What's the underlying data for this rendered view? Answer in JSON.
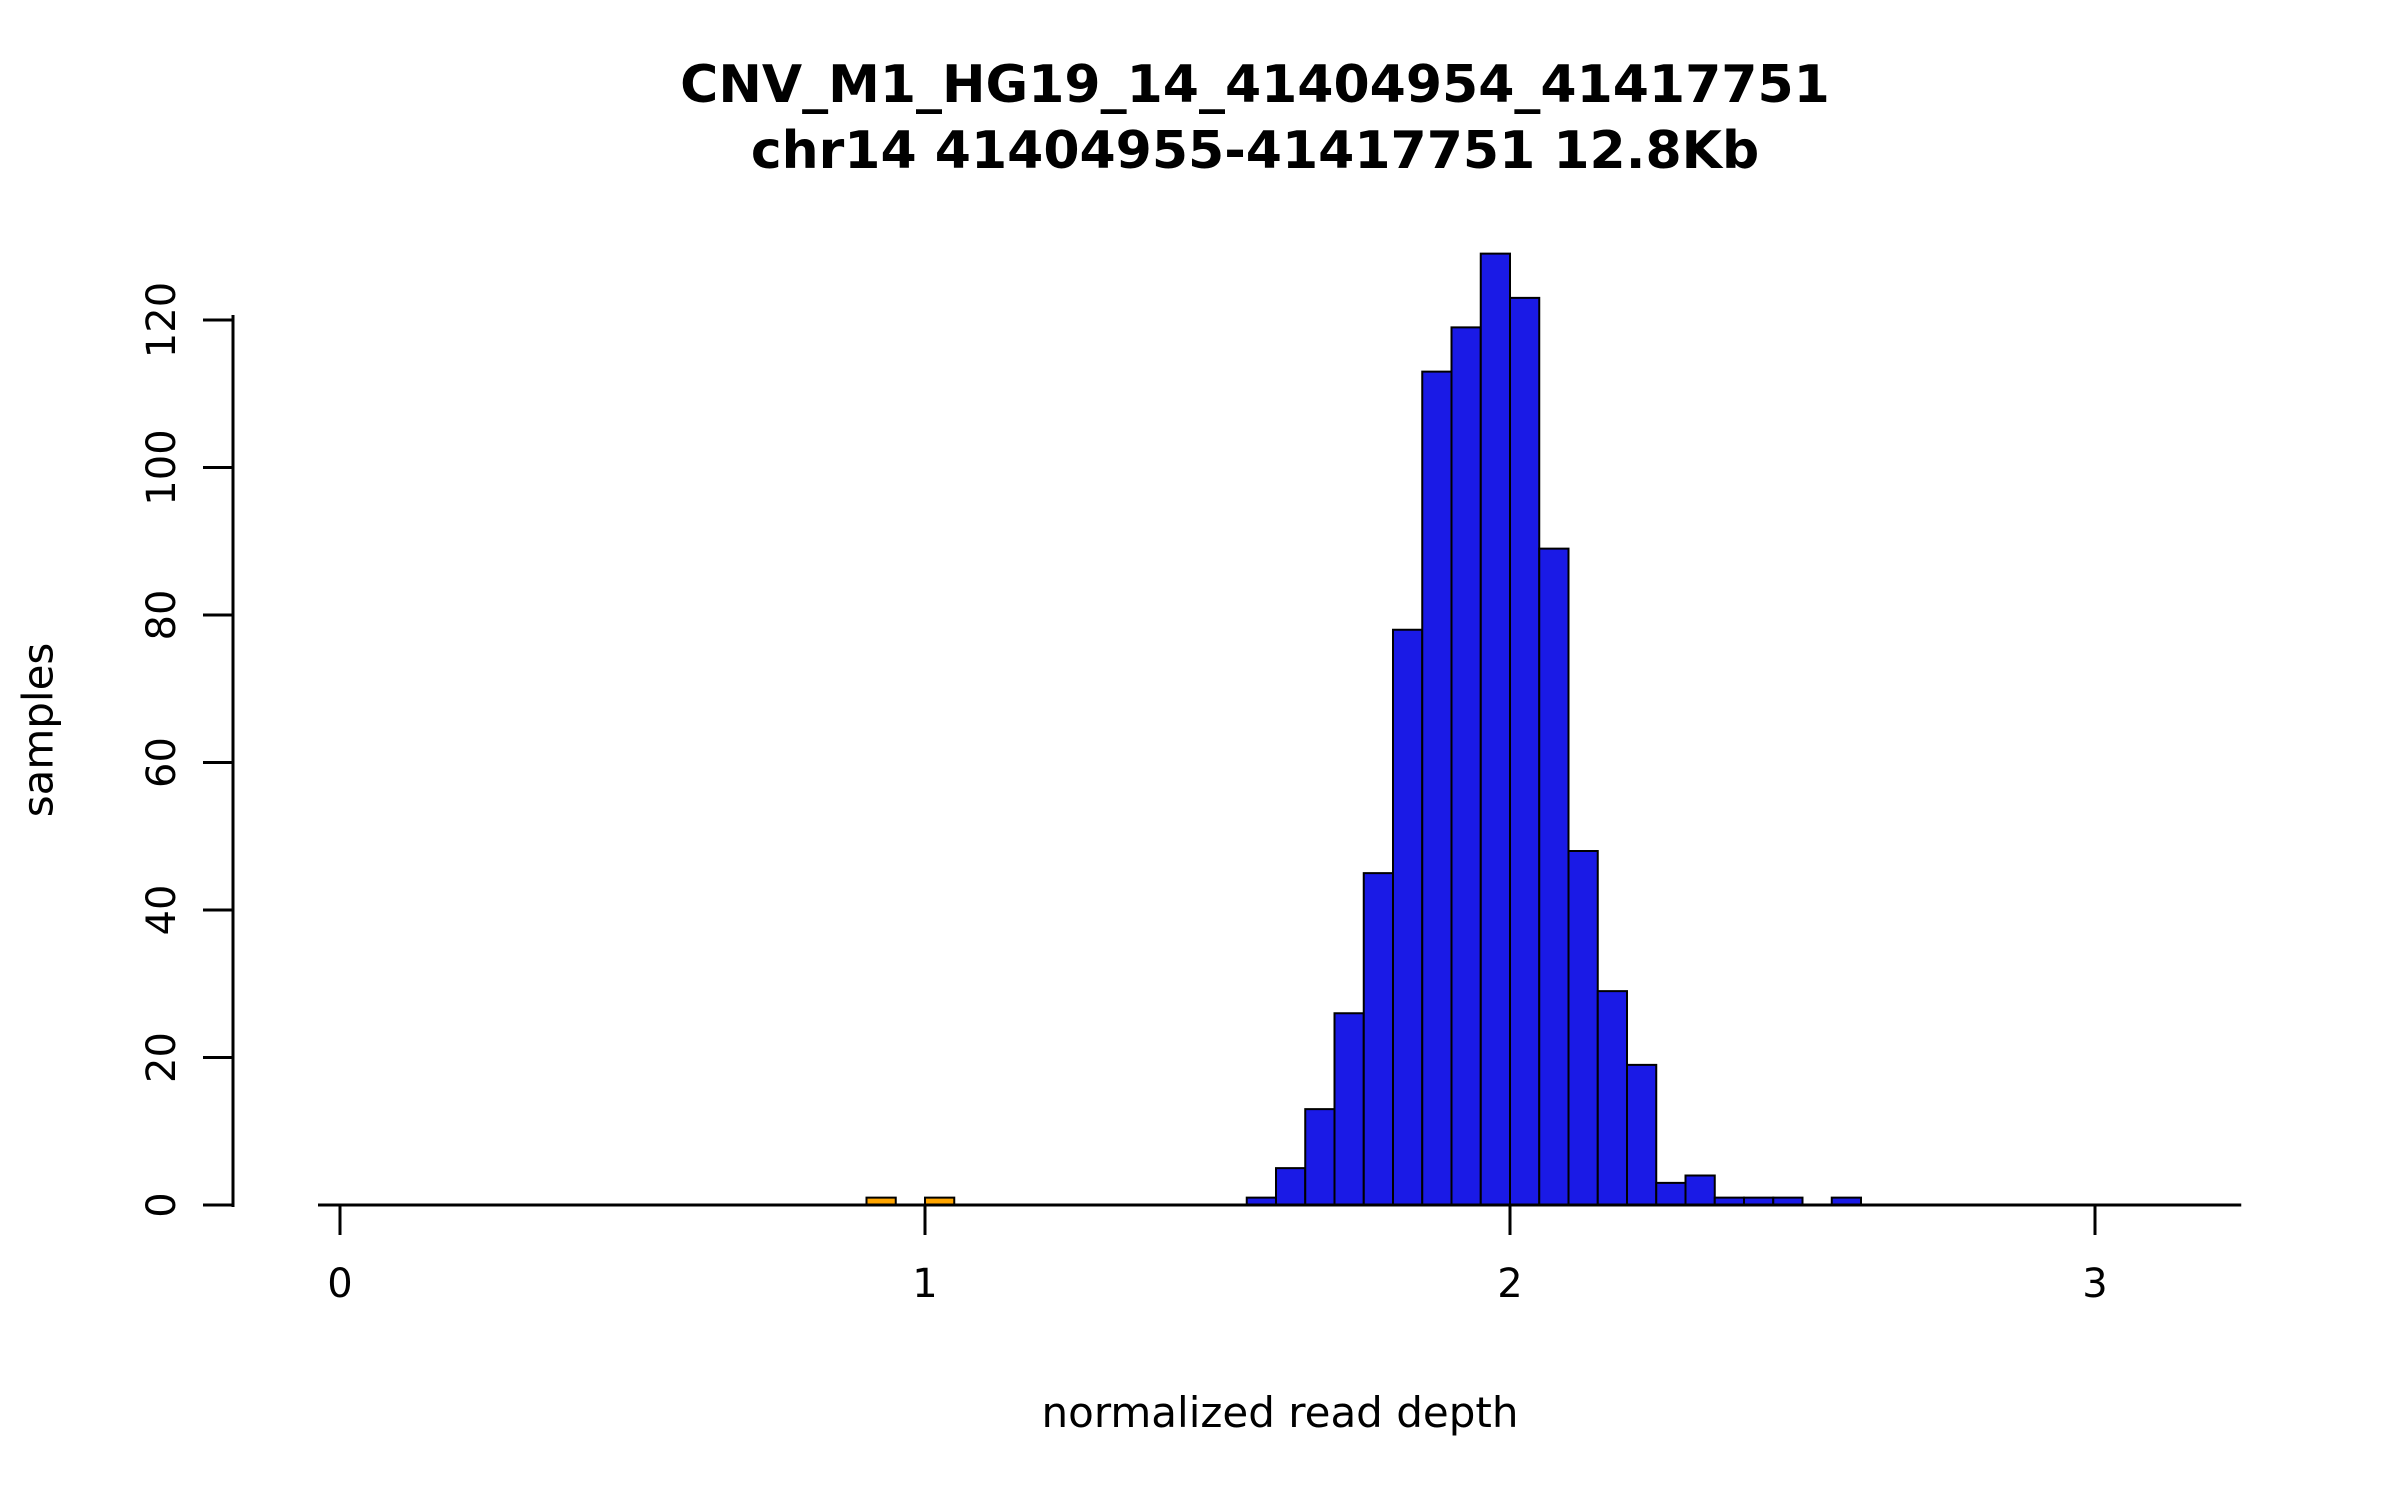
{
  "chart_data": {
    "type": "bar",
    "chart_kind": "histogram",
    "title": "CNV_M1_HG19_14_41404954_41417751",
    "subtitle": "chr14 41404955-41417751 12.8Kb",
    "xlabel": "normalized read depth",
    "ylabel": "samples",
    "xlim": [
      0,
      3.25
    ],
    "ylim": [
      0,
      129
    ],
    "x_ticks": [
      0,
      1,
      2,
      3
    ],
    "y_ticks": [
      0,
      20,
      40,
      60,
      80,
      100,
      120
    ],
    "bin_width": 0.05,
    "grid": false,
    "legend": "none",
    "colors": {
      "blue": "#1a1ae6",
      "orange": "#ffa500",
      "bar_border": "#000000",
      "axis": "#000000"
    },
    "bars": [
      {
        "x0": 0.9,
        "count": 1,
        "color": "orange"
      },
      {
        "x0": 1.0,
        "count": 1,
        "color": "orange"
      },
      {
        "x0": 1.55,
        "count": 1,
        "color": "blue"
      },
      {
        "x0": 1.6,
        "count": 5,
        "color": "blue"
      },
      {
        "x0": 1.65,
        "count": 13,
        "color": "blue"
      },
      {
        "x0": 1.7,
        "count": 26,
        "color": "blue"
      },
      {
        "x0": 1.75,
        "count": 45,
        "color": "blue"
      },
      {
        "x0": 1.8,
        "count": 78,
        "color": "blue"
      },
      {
        "x0": 1.85,
        "count": 113,
        "color": "blue"
      },
      {
        "x0": 1.9,
        "count": 119,
        "color": "blue"
      },
      {
        "x0": 1.95,
        "count": 129,
        "color": "blue"
      },
      {
        "x0": 2.0,
        "count": 123,
        "color": "blue"
      },
      {
        "x0": 2.05,
        "count": 89,
        "color": "blue"
      },
      {
        "x0": 2.1,
        "count": 48,
        "color": "blue"
      },
      {
        "x0": 2.15,
        "count": 29,
        "color": "blue"
      },
      {
        "x0": 2.2,
        "count": 19,
        "color": "blue"
      },
      {
        "x0": 2.25,
        "count": 3,
        "color": "blue"
      },
      {
        "x0": 2.3,
        "count": 4,
        "color": "blue"
      },
      {
        "x0": 2.35,
        "count": 1,
        "color": "blue"
      },
      {
        "x0": 2.4,
        "count": 1,
        "color": "blue"
      },
      {
        "x0": 2.45,
        "count": 1,
        "color": "blue"
      },
      {
        "x0": 2.55,
        "count": 1,
        "color": "blue"
      }
    ]
  }
}
